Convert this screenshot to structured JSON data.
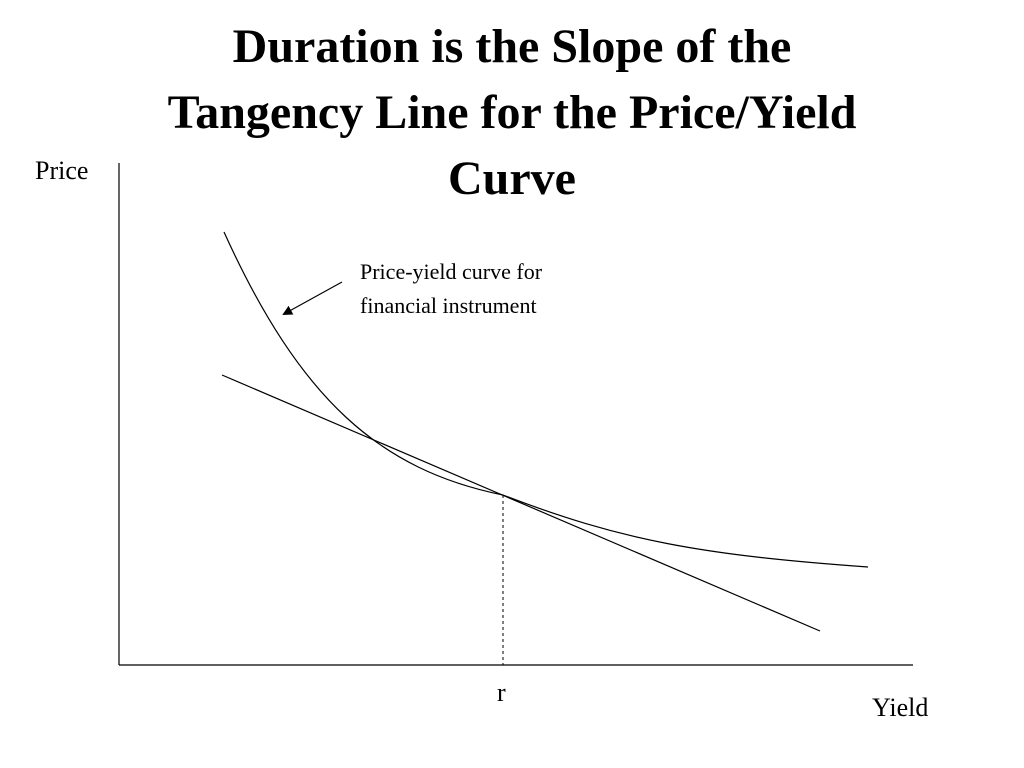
{
  "title": {
    "line1": "Duration is the Slope of the",
    "line2": "Tangency Line for the Price/Yield",
    "line3": "Curve"
  },
  "axes": {
    "y_label": "Price",
    "x_label": "Yield",
    "x_marker_label": "r"
  },
  "annotation": {
    "line1": "Price-yield curve for",
    "line2": "financial instrument"
  },
  "colors": {
    "ink": "#000000",
    "background": "#ffffff"
  }
}
